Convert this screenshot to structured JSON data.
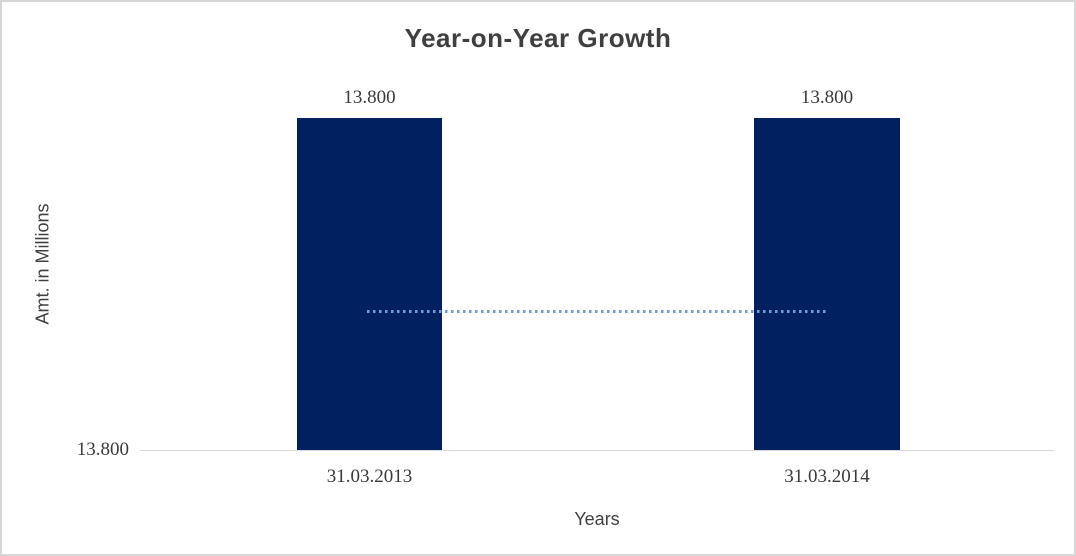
{
  "chart_data": {
    "type": "bar",
    "title": "Year-on-Year Growth",
    "categories": [
      "31.03.2013",
      "31.03.2014"
    ],
    "values": [
      13.8,
      13.8
    ],
    "value_labels": [
      "13.800",
      "13.800"
    ],
    "ytick_labels": [
      "13.800"
    ],
    "xlabel": "Years",
    "ylabel": "Amt. in Millions",
    "legend": "none",
    "grid": "off",
    "bar_color": "#002060",
    "trendline": {
      "type": "linear",
      "style": "dotted",
      "color": "#6f9ed6",
      "between_categories": [
        "31.03.2013",
        "31.03.2014"
      ]
    },
    "colors": {
      "title_text": "#3f3f3f",
      "tick_text": "#3a3a3a",
      "axis_title_text": "#404040",
      "axis_line": "#d9d9d9",
      "frame_border": "#d6d6d6",
      "background": "#ffffff"
    }
  }
}
